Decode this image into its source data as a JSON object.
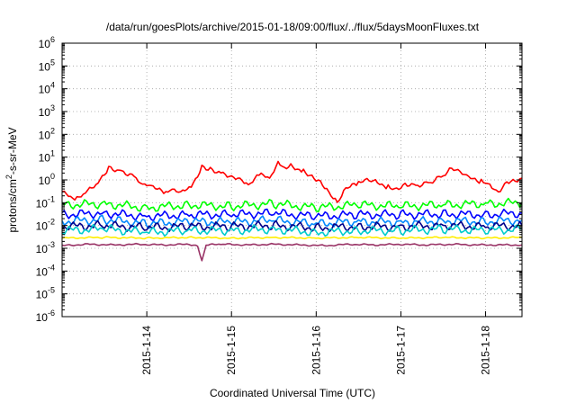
{
  "chart_data": {
    "type": "line",
    "title": "/data/run/goesPlots/archive/2015-01-18/09:00/flux/../flux/5daysMoonFluxes.txt",
    "xlabel": "Coordinated Universal Time (UTC)",
    "ylabel": "protons/cm²-s-sr-MeV",
    "ylabel_base": "protons/cm",
    "ylabel_sup": "2",
    "ylabel_rest": "-s-sr-MeV",
    "yscale": "log",
    "ylim": [
      1e-06,
      1000000.0
    ],
    "xlim": [
      13.0,
      18.43
    ],
    "x_ticks": [
      {
        "value": 14,
        "label": "2015-1-14"
      },
      {
        "value": 15,
        "label": "2015-1-15"
      },
      {
        "value": 16,
        "label": "2015-1-16"
      },
      {
        "value": 17,
        "label": "2015-1-17"
      },
      {
        "value": 18,
        "label": "2015-1-18"
      }
    ],
    "y_ticks": [
      {
        "exp": "6",
        "value": 1000000.0
      },
      {
        "exp": "5",
        "value": 100000.0
      },
      {
        "exp": "4",
        "value": 10000.0
      },
      {
        "exp": "3",
        "value": 1000.0
      },
      {
        "exp": "2",
        "value": 100.0
      },
      {
        "exp": "1",
        "value": 10.0
      },
      {
        "exp": "0",
        "value": 1.0
      },
      {
        "exp": "-1",
        "value": 0.1
      },
      {
        "exp": "-2",
        "value": 0.01
      },
      {
        "exp": "-3",
        "value": 0.001
      },
      {
        "exp": "-4",
        "value": 0.0001
      },
      {
        "exp": "-5",
        "value": 1e-05
      },
      {
        "exp": "-6",
        "value": 1e-06
      }
    ],
    "y_tick_base": "10",
    "grid": true,
    "series": [
      {
        "color": "#ff0000",
        "x": [
          13.0,
          13.15,
          13.3,
          13.45,
          13.55,
          13.7,
          13.85,
          13.95,
          14.05,
          14.2,
          14.3,
          14.4,
          14.55,
          14.65,
          14.75,
          14.9,
          15.0,
          15.1,
          15.2,
          15.35,
          15.45,
          15.55,
          15.6,
          15.7,
          15.85,
          15.95,
          16.05,
          16.15,
          16.25,
          16.35,
          16.5,
          16.6,
          16.7,
          16.85,
          16.95,
          17.05,
          17.2,
          17.35,
          17.5,
          17.6,
          17.7,
          17.8,
          17.95,
          18.05,
          18.15,
          18.25,
          18.35,
          18.43
        ],
        "values": [
          0.3,
          0.12,
          0.3,
          0.9,
          3.5,
          2.5,
          1.5,
          0.7,
          0.6,
          0.25,
          0.35,
          0.25,
          0.6,
          3.5,
          3.0,
          2.0,
          1.5,
          1.2,
          0.6,
          1.8,
          1.0,
          5.0,
          3.0,
          4.0,
          2.5,
          1.5,
          0.9,
          0.3,
          0.1,
          0.4,
          0.7,
          0.9,
          0.8,
          0.5,
          0.4,
          0.7,
          0.6,
          0.8,
          1.5,
          3.0,
          2.0,
          1.2,
          0.9,
          0.6,
          0.3,
          0.9,
          1.0,
          1.2
        ]
      },
      {
        "color": "#00ff00",
        "x": [
          13.0,
          13.5,
          14.0,
          14.5,
          15.0,
          15.5,
          16.0,
          16.5,
          17.0,
          17.5,
          18.0,
          18.43
        ],
        "values": [
          0.08,
          0.09,
          0.06,
          0.08,
          0.07,
          0.09,
          0.06,
          0.08,
          0.07,
          0.08,
          0.09,
          0.1
        ]
      },
      {
        "color": "#0000ff",
        "x": [
          13.0,
          13.5,
          14.0,
          14.5,
          15.0,
          15.5,
          16.0,
          16.5,
          17.0,
          17.5,
          18.0,
          18.43
        ],
        "values": [
          0.03,
          0.035,
          0.025,
          0.03,
          0.03,
          0.035,
          0.025,
          0.03,
          0.03,
          0.032,
          0.03,
          0.035
        ]
      },
      {
        "color": "#0088ff",
        "x": [
          13.0,
          13.5,
          14.0,
          14.5,
          15.0,
          15.5,
          16.0,
          16.5,
          17.0,
          17.5,
          18.0,
          18.43
        ],
        "values": [
          0.015,
          0.018,
          0.012,
          0.015,
          0.014,
          0.017,
          0.012,
          0.015,
          0.014,
          0.016,
          0.015,
          0.017
        ]
      },
      {
        "color": "#00008b",
        "x": [
          13.0,
          13.5,
          14.0,
          14.5,
          15.0,
          15.5,
          16.0,
          16.5,
          17.0,
          17.5,
          18.0,
          18.43
        ],
        "values": [
          0.009,
          0.01,
          0.008,
          0.009,
          0.009,
          0.01,
          0.008,
          0.009,
          0.009,
          0.01,
          0.009,
          0.01
        ]
      },
      {
        "color": "#00cccc",
        "x": [
          13.0,
          13.5,
          14.0,
          14.5,
          15.0,
          15.5,
          16.0,
          16.5,
          17.0,
          17.5,
          18.0,
          18.43
        ],
        "values": [
          0.006,
          0.007,
          0.005,
          0.006,
          0.006,
          0.007,
          0.005,
          0.006,
          0.006,
          0.007,
          0.006,
          0.007
        ]
      },
      {
        "color": "#ffee00",
        "x": [
          13.0,
          13.5,
          14.0,
          14.5,
          15.0,
          15.5,
          16.0,
          16.5,
          17.0,
          17.5,
          18.0,
          18.43
        ],
        "values": [
          0.0028,
          0.003,
          0.0028,
          0.003,
          0.0028,
          0.003,
          0.0028,
          0.003,
          0.0028,
          0.003,
          0.0028,
          0.003
        ]
      },
      {
        "color": "#993366",
        "x": [
          13.0,
          13.3,
          13.6,
          13.9,
          14.2,
          14.5,
          14.6,
          14.65,
          14.7,
          14.9,
          15.2,
          15.5,
          15.8,
          16.1,
          16.4,
          16.7,
          17.0,
          17.3,
          17.6,
          17.9,
          18.2,
          18.43
        ],
        "values": [
          0.0013,
          0.0015,
          0.0014,
          0.0015,
          0.0014,
          0.0015,
          0.0013,
          0.0003,
          0.0014,
          0.0015,
          0.0014,
          0.0015,
          0.0014,
          0.0013,
          0.0015,
          0.0014,
          0.0015,
          0.0014,
          0.0015,
          0.0014,
          0.0014,
          0.0014
        ]
      }
    ]
  }
}
